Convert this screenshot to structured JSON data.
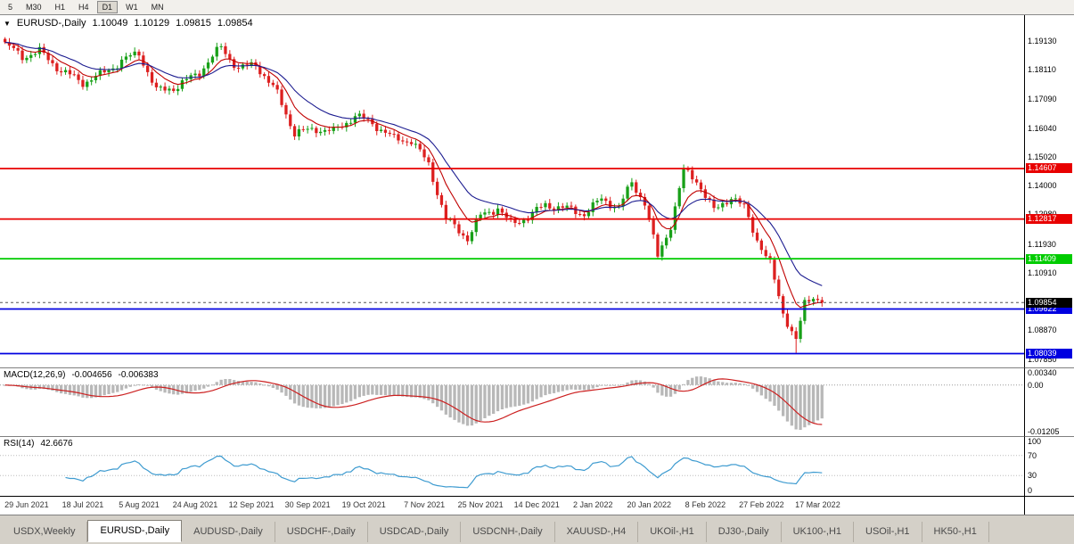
{
  "colors": {
    "candle_up": "#18a018",
    "candle_down": "#dd2020",
    "ma_fast": "#c00000",
    "ma_slow": "#1c1c90",
    "macd_hist": "#b8b8b8",
    "macd_signal": "#cc2020",
    "rsi_line": "#3e9bd0",
    "current_badge": "#000000",
    "tab_active_bg": "#ffffff"
  },
  "toolbar": {
    "timeframes": [
      "5",
      "M30",
      "H1",
      "H4",
      "D1",
      "W1",
      "MN"
    ],
    "active": "D1"
  },
  "chart_header": {
    "symbol": "EURUSD-,Daily",
    "open": "1.10049",
    "high": "1.10129",
    "low": "1.09815",
    "close": "1.09854"
  },
  "price_axis": {
    "labels": [
      "1.19130",
      "1.18110",
      "1.17090",
      "1.16040",
      "1.15020",
      "1.14000",
      "1.12980",
      "1.11930",
      "1.10910",
      "1.08870",
      "1.07850"
    ]
  },
  "hlines": [
    {
      "price": 1.14607,
      "label": "1.14607",
      "color": "#e80000"
    },
    {
      "price": 1.12817,
      "label": "1.12817",
      "color": "#e80000"
    },
    {
      "price": 1.11409,
      "label": "1.11409",
      "color": "#00cc00"
    },
    {
      "price": 1.09622,
      "label": "1.09622",
      "color": "#0000e0"
    },
    {
      "price": 1.08039,
      "label": "1.08039",
      "color": "#0000e0"
    }
  ],
  "current_price": {
    "price": 1.09854,
    "label": "1.09854"
  },
  "macd": {
    "title": "MACD(12,26,9)",
    "value1": "-0.004656",
    "value2": "-0.006383",
    "axis": [
      {
        "label": "0.00340",
        "value": 0.0034
      },
      {
        "label": "0.00",
        "value": 0
      },
      {
        "label": "-0.01205",
        "value": -0.01205
      }
    ],
    "ylim": [
      -0.01205,
      0.0034
    ]
  },
  "rsi": {
    "title": "RSI(14)",
    "value": "42.6676",
    "axis": [
      {
        "label": "100",
        "value": 100
      },
      {
        "label": "70",
        "value": 70
      },
      {
        "label": "30",
        "value": 30
      },
      {
        "label": "0",
        "value": 0
      }
    ],
    "levels": [
      70,
      30
    ]
  },
  "date_axis": [
    "29 Jun 2021",
    "18 Jul 2021",
    "5 Aug 2021",
    "24 Aug 2021",
    "12 Sep 2021",
    "30 Sep 2021",
    "19 Oct 2021",
    "7 Nov 2021",
    "25 Nov 2021",
    "14 Dec 2021",
    "2 Jan 2022",
    "20 Jan 2022",
    "8 Feb 2022",
    "27 Feb 2022",
    "17 Mar 2022"
  ],
  "tabs": [
    {
      "label": "USDX,Weekly",
      "active": false
    },
    {
      "label": "EURUSD-,Daily",
      "active": true
    },
    {
      "label": "AUDUSD-,Daily",
      "active": false
    },
    {
      "label": "USDCHF-,Daily",
      "active": false
    },
    {
      "label": "USDCAD-,Daily",
      "active": false
    },
    {
      "label": "USDCNH-,Daily",
      "active": false
    },
    {
      "label": "XAUUSD-,H4",
      "active": false
    },
    {
      "label": "UKOil-,H1",
      "active": false
    },
    {
      "label": "DJ30-,Daily",
      "active": false
    },
    {
      "label": "UK100-,H1",
      "active": false
    },
    {
      "label": "USOil-,H1",
      "active": false
    },
    {
      "label": "HK50-,H1",
      "active": false
    }
  ],
  "chart_data": {
    "type": "candlestick",
    "symbol": "EURUSD",
    "timeframe": "Daily",
    "bars": 190,
    "ylim": [
      1.0755,
      1.2005
    ],
    "last_close": 1.09854,
    "spike_low": {
      "index": 183,
      "price": 1.0806
    },
    "close_anchors": [
      [
        0,
        1.1902
      ],
      [
        4,
        1.1858
      ],
      [
        8,
        1.1876
      ],
      [
        13,
        1.1808
      ],
      [
        18,
        1.1766
      ],
      [
        22,
        1.1792
      ],
      [
        27,
        1.1842
      ],
      [
        31,
        1.1872
      ],
      [
        35,
        1.1736
      ],
      [
        40,
        1.1752
      ],
      [
        45,
        1.1804
      ],
      [
        50,
        1.1892
      ],
      [
        54,
        1.1814
      ],
      [
        58,
        1.1832
      ],
      [
        63,
        1.1726
      ],
      [
        67,
        1.1586
      ],
      [
        72,
        1.1602
      ],
      [
        76,
        1.1592
      ],
      [
        81,
        1.1648
      ],
      [
        85,
        1.1622
      ],
      [
        90,
        1.1566
      ],
      [
        94,
        1.156
      ],
      [
        98,
        1.1476
      ],
      [
        102,
        1.128
      ],
      [
        107,
        1.1214
      ],
      [
        110,
        1.1292
      ],
      [
        114,
        1.1322
      ],
      [
        117,
        1.1262
      ],
      [
        121,
        1.129
      ],
      [
        125,
        1.1332
      ],
      [
        130,
        1.1318
      ],
      [
        134,
        1.13
      ],
      [
        138,
        1.1352
      ],
      [
        142,
        1.1322
      ],
      [
        145,
        1.141
      ],
      [
        148,
        1.134
      ],
      [
        151,
        1.1146
      ],
      [
        154,
        1.126
      ],
      [
        157,
        1.1452
      ],
      [
        160,
        1.142
      ],
      [
        164,
        1.131
      ],
      [
        168,
        1.1362
      ],
      [
        171,
        1.132
      ],
      [
        174,
        1.121
      ],
      [
        177,
        1.112
      ],
      [
        180,
        1.095
      ],
      [
        183,
        1.085
      ],
      [
        185,
        1.098
      ],
      [
        187,
        1.101
      ],
      [
        189,
        1.09854
      ]
    ],
    "indicators": {
      "ma_fast_period": 8,
      "ma_slow_period": 18,
      "macd": [
        12,
        26,
        9
      ],
      "rsi": 14
    }
  }
}
